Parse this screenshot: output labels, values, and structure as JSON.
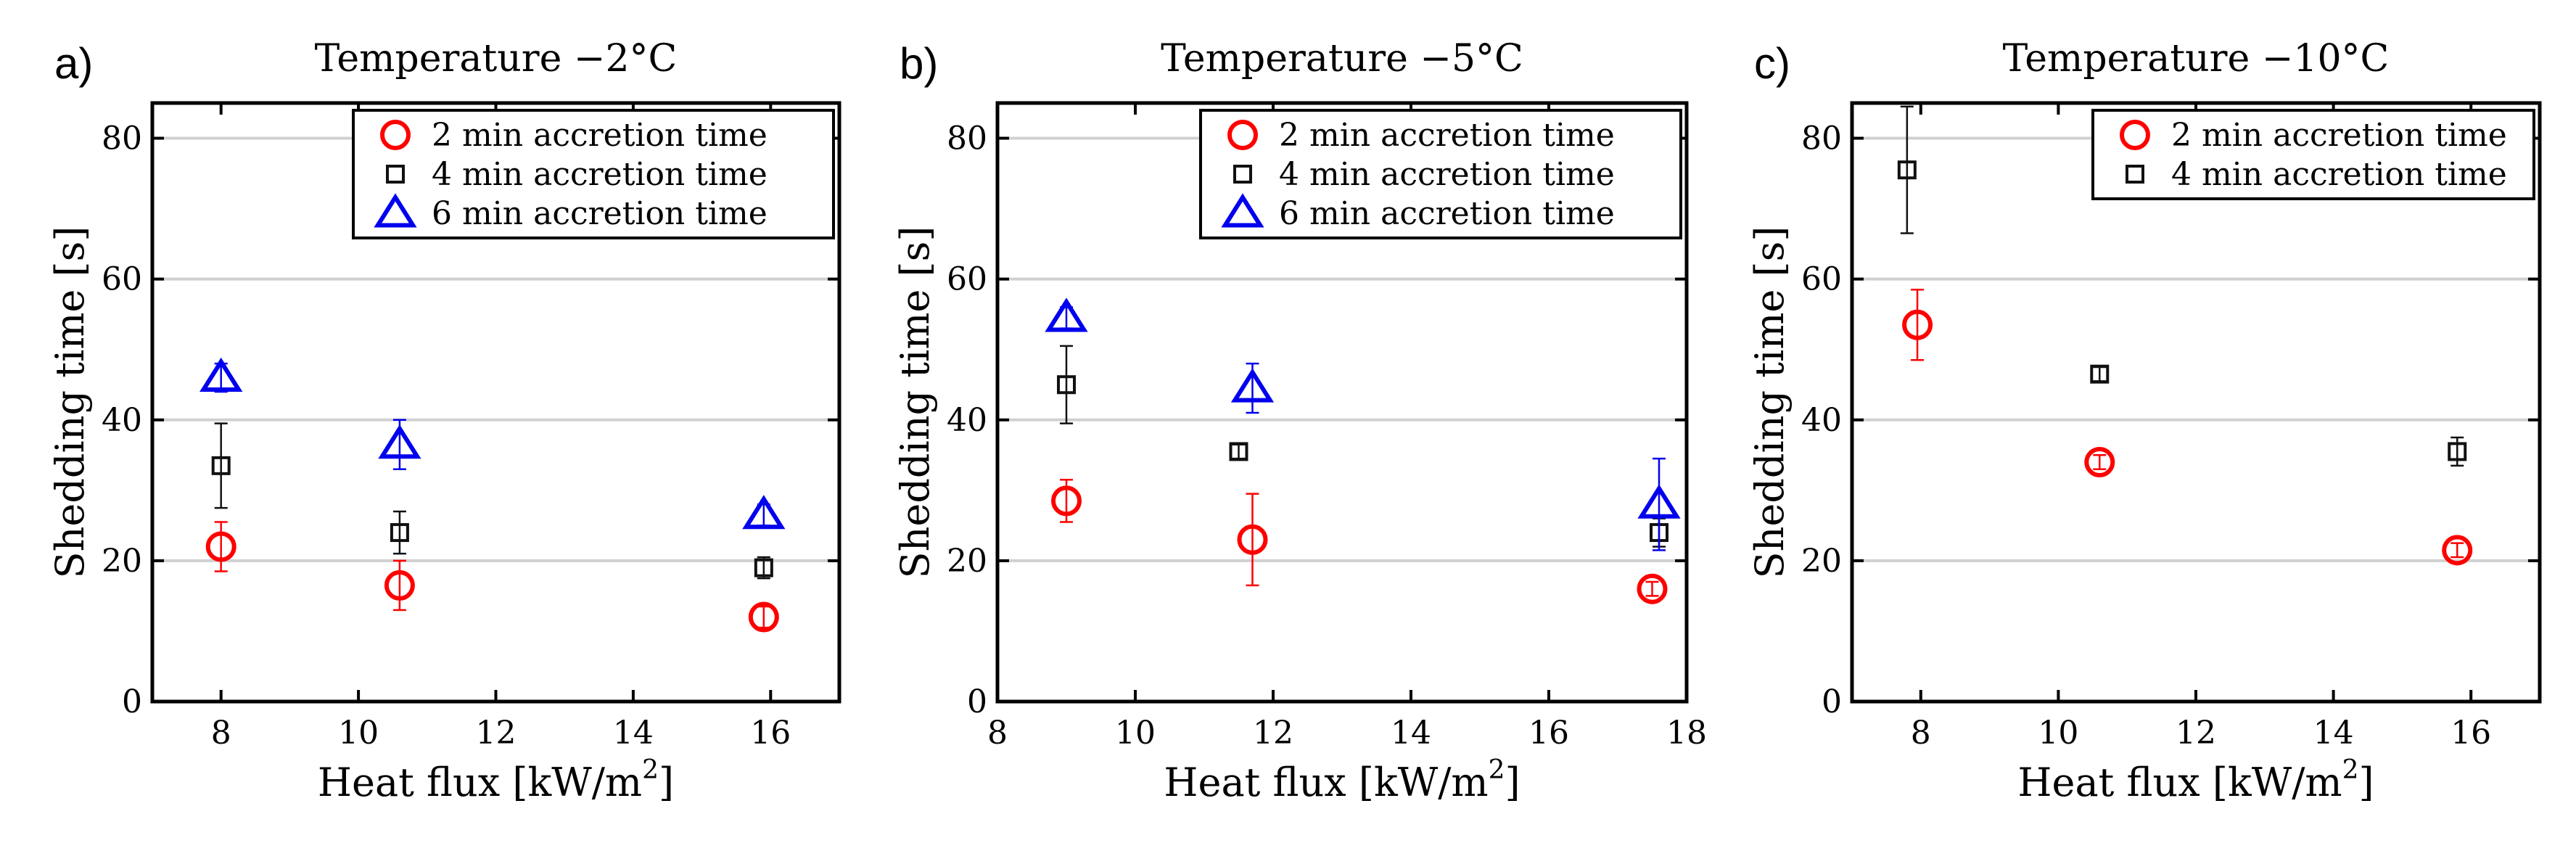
{
  "colors": {
    "series_2min": "#ff0000",
    "series_4min": "#111111",
    "series_6min": "#0000ee",
    "grid": "#d0d0d0",
    "axis": "#000000"
  },
  "chart_data": [
    {
      "type": "scatter",
      "panel_label": "a)",
      "title": "Temperature −2°C",
      "xlabel": "Heat flux [kW/m²]",
      "xlabel_main": "Heat flux [kW/m",
      "xlabel_sup": "2",
      "xlabel_tail": "]",
      "ylabel": "Shedding time [s]",
      "xlim": [
        7,
        17
      ],
      "ylim": [
        0,
        85
      ],
      "xticks": [
        8,
        10,
        12,
        14,
        16
      ],
      "yticks": [
        0,
        20,
        40,
        60,
        80
      ],
      "grid": "horizontal",
      "legend_position": "top-right",
      "series": [
        {
          "name": "2 min accretion time",
          "marker": "circle",
          "color": "#ff0000",
          "points": [
            {
              "x": 8.0,
              "y": 22.0,
              "err": 3.5
            },
            {
              "x": 10.6,
              "y": 16.5,
              "err": 3.5
            },
            {
              "x": 15.9,
              "y": 12.0,
              "err": 1.5
            }
          ]
        },
        {
          "name": "4 min accretion time",
          "marker": "square",
          "color": "#111111",
          "points": [
            {
              "x": 8.0,
              "y": 33.5,
              "err": 6.0
            },
            {
              "x": 10.6,
              "y": 24.0,
              "err": 3.0
            },
            {
              "x": 15.9,
              "y": 19.0,
              "err": 1.5
            }
          ]
        },
        {
          "name": "6 min accretion time",
          "marker": "triangle",
          "color": "#0000ee",
          "points": [
            {
              "x": 8.0,
              "y": 46.0,
              "err": 2.0
            },
            {
              "x": 10.6,
              "y": 36.5,
              "err": 3.5
            },
            {
              "x": 15.9,
              "y": 26.5,
              "err": 1.5
            }
          ]
        }
      ]
    },
    {
      "type": "scatter",
      "panel_label": "b)",
      "title": "Temperature −5°C",
      "xlabel": "Heat flux [kW/m²]",
      "xlabel_main": "Heat flux [kW/m",
      "xlabel_sup": "2",
      "xlabel_tail": "]",
      "ylabel": "Shedding time [s]",
      "xlim": [
        8,
        18
      ],
      "ylim": [
        0,
        85
      ],
      "xticks": [
        8,
        10,
        12,
        14,
        16,
        18
      ],
      "yticks": [
        0,
        20,
        40,
        60,
        80
      ],
      "grid": "horizontal",
      "legend_position": "top-right",
      "series": [
        {
          "name": "2 min accretion time",
          "marker": "circle",
          "color": "#ff0000",
          "points": [
            {
              "x": 9.0,
              "y": 28.5,
              "err": 3.0
            },
            {
              "x": 11.7,
              "y": 23.0,
              "err": 6.5
            },
            {
              "x": 17.5,
              "y": 16.0,
              "err": 1.0
            }
          ]
        },
        {
          "name": "4 min accretion time",
          "marker": "square",
          "color": "#111111",
          "points": [
            {
              "x": 9.0,
              "y": 45.0,
              "err": 5.5
            },
            {
              "x": 11.5,
              "y": 35.5,
              "err": 1.0
            },
            {
              "x": 17.6,
              "y": 24.0,
              "err": 2.0
            }
          ]
        },
        {
          "name": "6 min accretion time",
          "marker": "triangle",
          "color": "#0000ee",
          "points": [
            {
              "x": 9.0,
              "y": 54.5,
              "err": 1.5
            },
            {
              "x": 11.7,
              "y": 44.5,
              "err": 3.5
            },
            {
              "x": 17.6,
              "y": 28.0,
              "err": 6.5
            }
          ]
        }
      ]
    },
    {
      "type": "scatter",
      "panel_label": "c)",
      "title": "Temperature −10°C",
      "xlabel": "Heat flux [kW/m²]",
      "xlabel_main": "Heat flux [kW/m",
      "xlabel_sup": "2",
      "xlabel_tail": "]",
      "ylabel": "Shedding time [s]",
      "xlim": [
        7,
        17
      ],
      "ylim": [
        0,
        85
      ],
      "xticks": [
        8,
        10,
        12,
        14,
        16
      ],
      "yticks": [
        0,
        20,
        40,
        60,
        80
      ],
      "grid": "horizontal",
      "legend_position": "top-right",
      "series": [
        {
          "name": "2 min accretion time",
          "marker": "circle",
          "color": "#ff0000",
          "points": [
            {
              "x": 7.95,
              "y": 53.5,
              "err": 5.0
            },
            {
              "x": 10.6,
              "y": 34.0,
              "err": 1.0
            },
            {
              "x": 15.8,
              "y": 21.5,
              "err": 1.0
            }
          ]
        },
        {
          "name": "4 min accretion time",
          "marker": "square",
          "color": "#111111",
          "points": [
            {
              "x": 7.8,
              "y": 75.5,
              "err": 9.0
            },
            {
              "x": 10.6,
              "y": 46.5,
              "err": 1.0
            },
            {
              "x": 15.8,
              "y": 35.5,
              "err": 2.0
            }
          ]
        }
      ]
    }
  ]
}
